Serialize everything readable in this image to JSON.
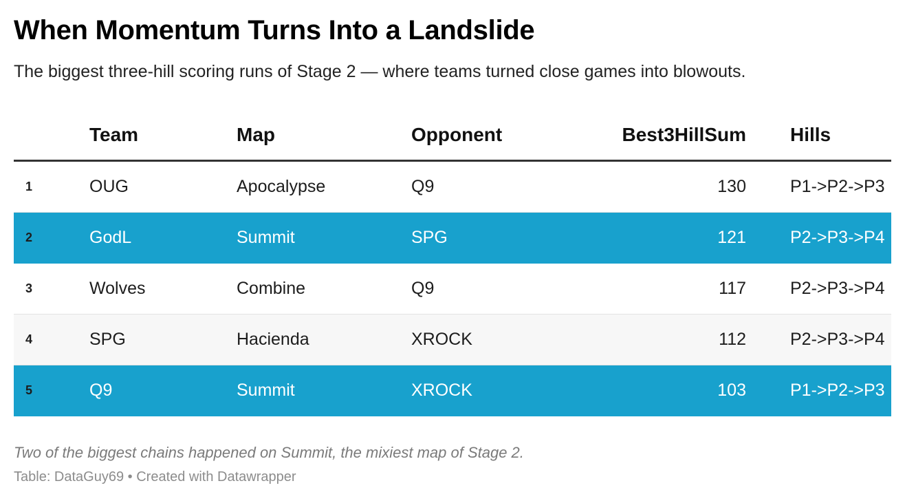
{
  "title": "When Momentum Turns Into a Landslide",
  "subtitle": "The biggest three-hill scoring runs of Stage 2 — where teams turned close games into blowouts.",
  "notes": "Two of the biggest chains happened on Summit, the mixiest map of Stage 2.",
  "source": "Table: DataGuy69 • Created with Datawrapper",
  "highlight_color": "#18a1cd",
  "chart_data": {
    "type": "table",
    "columns": [
      "Team",
      "Map",
      "Opponent",
      "Best3HillSum",
      "Hills"
    ],
    "rows": [
      {
        "rank": "1",
        "team": "OUG",
        "map": "Apocalypse",
        "opponent": "Q9",
        "sum": 130,
        "hills": "P1->P2->P3",
        "highlight": false
      },
      {
        "rank": "2",
        "team": "GodL",
        "map": "Summit",
        "opponent": "SPG",
        "sum": 121,
        "hills": "P2->P3->P4",
        "highlight": true
      },
      {
        "rank": "3",
        "team": "Wolves",
        "map": "Combine",
        "opponent": "Q9",
        "sum": 117,
        "hills": "P2->P3->P4",
        "highlight": false
      },
      {
        "rank": "4",
        "team": "SPG",
        "map": "Hacienda",
        "opponent": "XROCK",
        "sum": 112,
        "hills": "P2->P3->P4",
        "highlight": false
      },
      {
        "rank": "5",
        "team": "Q9",
        "map": "Summit",
        "opponent": "XROCK",
        "sum": 103,
        "hills": "P1->P2->P3",
        "highlight": true
      }
    ]
  }
}
